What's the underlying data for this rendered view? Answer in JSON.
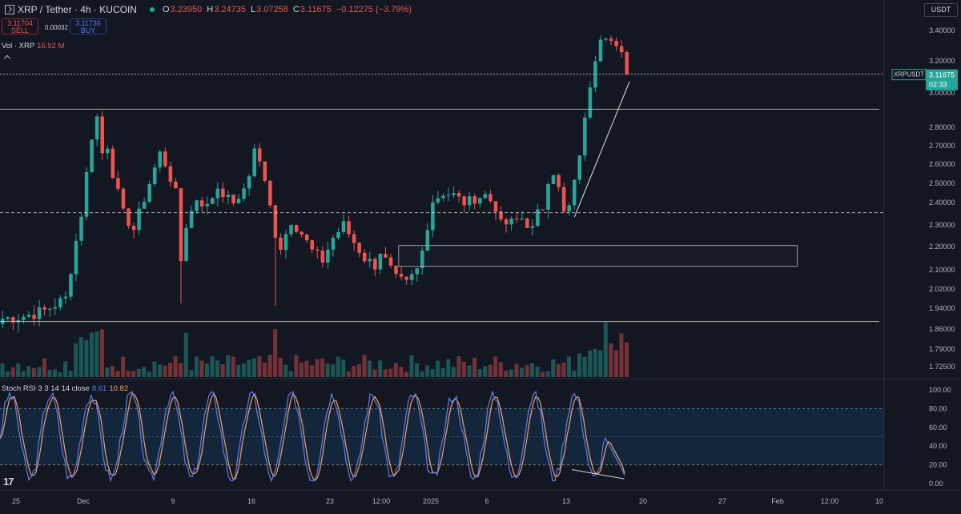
{
  "header": {
    "symbol_title": "XRP / Tether · 4h · KUCOIN",
    "ohlc": [
      {
        "label": "O",
        "value": "3.23950"
      },
      {
        "label": "H",
        "value": "3.24735"
      },
      {
        "label": "L",
        "value": "3.07258"
      },
      {
        "label": "C",
        "value": "3.11675"
      }
    ],
    "change": "−0.12275 (−3.79%)"
  },
  "trade": {
    "sell_price": "3.11704",
    "sell_label": "SELL",
    "spread": "0.00032",
    "buy_price": "3.11736",
    "buy_label": "BUY"
  },
  "volume_legend": {
    "label": "Vol · XRP",
    "value": "16.92 M"
  },
  "currency_button": "USDT",
  "price_tag": {
    "symbol": "XRPUSDT",
    "price": "3.11675",
    "countdown": "02:33"
  },
  "stoch_legend": {
    "label": "Stoch RSI 3 3 14 14 close",
    "k": "8.61",
    "d": "10.82"
  },
  "colors": {
    "background": "#131722",
    "bull": "#26a69a",
    "bear": "#ef5350",
    "k_line": "#5b7cf5",
    "d_line": "#f7a35c",
    "grid_text": "#b2b5be"
  },
  "chart_data": [
    {
      "type": "candlestick",
      "title": "XRP / Tether · 4h · KUCOIN",
      "y_ticks": [
        "3.40000",
        "3.20000",
        "3.00000",
        "2.80000",
        "2.70000",
        "2.60000",
        "2.50000",
        "2.40000",
        "2.30000",
        "2.20000",
        "2.10000",
        "2.02000",
        "1.94000",
        "1.86000",
        "1.79000",
        "1.72500"
      ],
      "x_ticks": [
        "25",
        "Dec",
        "9",
        "16",
        "23",
        "12:00",
        "2025",
        "6",
        "13",
        "20",
        "27",
        "Feb",
        "12:00",
        "10"
      ],
      "price_path": [
        [
          0,
          1.9
        ],
        [
          4,
          1.91
        ],
        [
          8,
          1.93
        ],
        [
          12,
          1.98
        ],
        [
          15,
          2.35
        ],
        [
          17,
          2.75
        ],
        [
          18,
          2.86
        ],
        [
          19,
          2.66
        ],
        [
          20,
          2.7
        ],
        [
          21,
          2.55
        ],
        [
          23,
          2.35
        ],
        [
          25,
          2.28
        ],
        [
          27,
          2.42
        ],
        [
          29,
          2.58
        ],
        [
          30,
          2.66
        ],
        [
          31,
          2.6
        ],
        [
          33,
          2.45
        ],
        [
          34,
          2.14
        ],
        [
          35,
          2.3
        ],
        [
          37,
          2.42
        ],
        [
          39,
          2.38
        ],
        [
          41,
          2.48
        ],
        [
          43,
          2.42
        ],
        [
          45,
          2.4
        ],
        [
          47,
          2.55
        ],
        [
          48,
          2.68
        ],
        [
          49,
          2.62
        ],
        [
          50,
          2.5
        ],
        [
          51,
          2.38
        ],
        [
          52,
          2.26
        ],
        [
          53,
          2.2
        ],
        [
          55,
          2.32
        ],
        [
          57,
          2.26
        ],
        [
          59,
          2.18
        ],
        [
          61,
          2.14
        ],
        [
          63,
          2.24
        ],
        [
          65,
          2.3
        ],
        [
          67,
          2.22
        ],
        [
          69,
          2.15
        ],
        [
          71,
          2.12
        ],
        [
          72,
          2.18
        ],
        [
          73,
          2.14
        ],
        [
          75,
          2.06
        ],
        [
          77,
          2.04
        ],
        [
          79,
          2.1
        ],
        [
          80,
          2.18
        ],
        [
          81,
          2.3
        ],
        [
          82,
          2.41
        ],
        [
          84,
          2.45
        ],
        [
          86,
          2.44
        ],
        [
          88,
          2.4
        ],
        [
          90,
          2.42
        ],
        [
          92,
          2.44
        ],
        [
          94,
          2.38
        ],
        [
          95,
          2.3
        ],
        [
          97,
          2.31
        ],
        [
          99,
          2.33
        ],
        [
          101,
          2.28
        ],
        [
          102,
          2.35
        ],
        [
          103,
          2.38
        ],
        [
          104,
          2.52
        ],
        [
          105,
          2.56
        ],
        [
          106,
          2.47
        ],
        [
          107,
          2.35
        ],
        [
          108,
          2.38
        ],
        [
          109,
          2.5
        ],
        [
          110,
          2.66
        ],
        [
          111,
          2.84
        ],
        [
          112,
          3.05
        ],
        [
          113,
          3.22
        ],
        [
          114,
          3.36
        ],
        [
          115,
          3.37
        ],
        [
          116,
          3.33
        ],
        [
          117,
          3.28
        ],
        [
          118,
          3.24
        ],
        [
          119,
          3.1168
        ]
      ],
      "horizontal_lines": [
        {
          "price": 3.1168,
          "style": "dotted"
        },
        {
          "price": 2.905,
          "style": "solid"
        },
        {
          "price": 2.355,
          "style": "dashed"
        },
        {
          "price": 1.889,
          "style": "solid"
        }
      ],
      "rectangle": {
        "x_start": 76,
        "x_end": 152,
        "price_top": 2.205,
        "price_bottom": 2.115
      },
      "trendline": [
        [
          109,
          2.335
        ],
        [
          120,
          3.07
        ]
      ],
      "volume_series": "bars at bottom of price pane, colored bull/bear, spikes near start and end"
    },
    {
      "type": "line",
      "title": "Stoch RSI 3 3 14 14 close",
      "ylim": [
        0,
        100
      ],
      "y_ticks": [
        "100.00",
        "80.00",
        "60.00",
        "40.00",
        "20.00",
        "0.00"
      ],
      "band": [
        20,
        80
      ],
      "k_last": 8.61,
      "d_last": 10.82,
      "oscillation": "repeated cycles between approx. 5 and 95 across the visible range",
      "divergence_line": [
        [
          109,
          15
        ],
        [
          119,
          5
        ]
      ]
    }
  ]
}
